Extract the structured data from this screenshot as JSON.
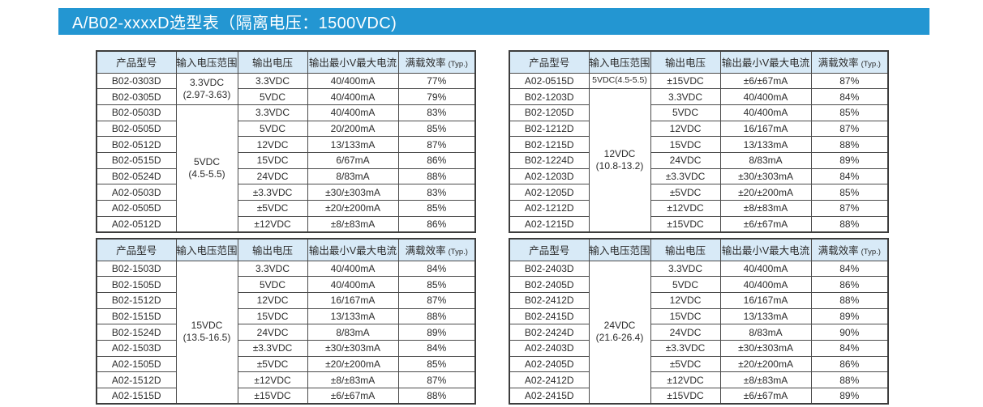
{
  "banner": {
    "title": "A/B02-xxxxD选型表（隔离电压：1500VDC)",
    "bg_color": "#2396d2",
    "text_color": "#ffffff"
  },
  "columns": [
    {
      "label": "产品型号"
    },
    {
      "label": "输入电压范围"
    },
    {
      "label": "输出电压"
    },
    {
      "label": "输出最小V最大电流"
    },
    {
      "label": "满载效率",
      "suffix": "(Typ.)"
    }
  ],
  "header_bg": "#d8eaf7",
  "tables": [
    {
      "id": "top-left",
      "groups": [
        {
          "input": [
            "3.3VDC",
            "(2.97-3.63)"
          ],
          "rows": [
            {
              "model": "B02-0303D",
              "vout": "3.3VDC",
              "current": "40/400mA",
              "eff": "77%"
            },
            {
              "model": "B02-0305D",
              "vout": "5VDC",
              "current": "40/400mA",
              "eff": "79%"
            }
          ]
        },
        {
          "input": [
            "5VDC",
            "(4.5-5.5)"
          ],
          "rows": [
            {
              "model": "B02-0503D",
              "vout": "3.3VDC",
              "current": "40/400mA",
              "eff": "83%"
            },
            {
              "model": "B02-0505D",
              "vout": "5VDC",
              "current": "20/200mA",
              "eff": "85%"
            },
            {
              "model": "B02-0512D",
              "vout": "12VDC",
              "current": "13/133mA",
              "eff": "87%"
            },
            {
              "model": "B02-0515D",
              "vout": "15VDC",
              "current": "6/67mA",
              "eff": "86%"
            },
            {
              "model": "B02-0524D",
              "vout": "24VDC",
              "current": "8/83mA",
              "eff": "88%"
            },
            {
              "model": "A02-0503D",
              "vout": "±3.3VDC",
              "current": "±30/±303mA",
              "eff": "83%"
            },
            {
              "model": "A02-0505D",
              "vout": "±5VDC",
              "current": "±20/±200mA",
              "eff": "85%"
            },
            {
              "model": "A02-0512D",
              "vout": "±12VDC",
              "current": "±8/±83mA",
              "eff": "86%"
            }
          ]
        }
      ]
    },
    {
      "id": "top-right",
      "groups": [
        {
          "input": [
            "5VDC(4.5-5.5)"
          ],
          "rows": [
            {
              "model": "A02-0515D",
              "vout": "±15VDC",
              "current": "±6/±67mA",
              "eff": "87%"
            }
          ]
        },
        {
          "input": [
            "12VDC",
            "(10.8-13.2)"
          ],
          "rows": [
            {
              "model": "B02-1203D",
              "vout": "3.3VDC",
              "current": "40/400mA",
              "eff": "84%"
            },
            {
              "model": "B02-1205D",
              "vout": "5VDC",
              "current": "40/400mA",
              "eff": "85%"
            },
            {
              "model": "B02-1212D",
              "vout": "12VDC",
              "current": "16/167mA",
              "eff": "87%"
            },
            {
              "model": "B02-1215D",
              "vout": "15VDC",
              "current": "13/133mA",
              "eff": "88%"
            },
            {
              "model": "B02-1224D",
              "vout": "24VDC",
              "current": "8/83mA",
              "eff": "89%"
            },
            {
              "model": "A02-1203D",
              "vout": "±3.3VDC",
              "current": "±30/±303mA",
              "eff": "84%"
            },
            {
              "model": "A02-1205D",
              "vout": "±5VDC",
              "current": "±20/±200mA",
              "eff": "85%"
            },
            {
              "model": "A02-1212D",
              "vout": "±12VDC",
              "current": "±8/±83mA",
              "eff": "87%"
            },
            {
              "model": "A02-1215D",
              "vout": "±15VDC",
              "current": "±6/±67mA",
              "eff": "88%"
            }
          ]
        }
      ]
    },
    {
      "id": "bottom-left",
      "groups": [
        {
          "input": [
            "15VDC",
            "(13.5-16.5)"
          ],
          "rows": [
            {
              "model": "B02-1503D",
              "vout": "3.3VDC",
              "current": "40/400mA",
              "eff": "84%"
            },
            {
              "model": "B02-1505D",
              "vout": "5VDC",
              "current": "40/400mA",
              "eff": "85%"
            },
            {
              "model": "B02-1512D",
              "vout": "12VDC",
              "current": "16/167mA",
              "eff": "87%"
            },
            {
              "model": "B02-1515D",
              "vout": "15VDC",
              "current": "13/133mA",
              "eff": "88%"
            },
            {
              "model": "B02-1524D",
              "vout": "24VDC",
              "current": "8/83mA",
              "eff": "89%"
            },
            {
              "model": "A02-1503D",
              "vout": "±3.3VDC",
              "current": "±30/±303mA",
              "eff": "84%"
            },
            {
              "model": "A02-1505D",
              "vout": "±5VDC",
              "current": "±20/±200mA",
              "eff": "85%"
            },
            {
              "model": "A02-1512D",
              "vout": "±12VDC",
              "current": "±8/±83mA",
              "eff": "87%"
            },
            {
              "model": "A02-1515D",
              "vout": "±15VDC",
              "current": "±6/±67mA",
              "eff": "88%"
            }
          ]
        }
      ]
    },
    {
      "id": "bottom-right",
      "groups": [
        {
          "input": [
            "24VDC",
            "(21.6-26.4)"
          ],
          "rows": [
            {
              "model": "B02-2403D",
              "vout": "3.3VDC",
              "current": "40/400mA",
              "eff": "84%"
            },
            {
              "model": "B02-2405D",
              "vout": "5VDC",
              "current": "40/400mA",
              "eff": "86%"
            },
            {
              "model": "B02-2412D",
              "vout": "12VDC",
              "current": "16/167mA",
              "eff": "88%"
            },
            {
              "model": "B02-2415D",
              "vout": "15VDC",
              "current": "13/133mA",
              "eff": "89%"
            },
            {
              "model": "B02-2424D",
              "vout": "24VDC",
              "current": "8/83mA",
              "eff": "90%"
            },
            {
              "model": "A02-2403D",
              "vout": "±3.3VDC",
              "current": "±30/±303mA",
              "eff": "84%"
            },
            {
              "model": "A02-2405D",
              "vout": "±5VDC",
              "current": "±20/±200mA",
              "eff": "86%"
            },
            {
              "model": "A02-2412D",
              "vout": "±12VDC",
              "current": "±8/±83mA",
              "eff": "88%"
            },
            {
              "model": "A02-2415D",
              "vout": "±15VDC",
              "current": "±6/±67mA",
              "eff": "89%"
            }
          ]
        }
      ]
    }
  ]
}
